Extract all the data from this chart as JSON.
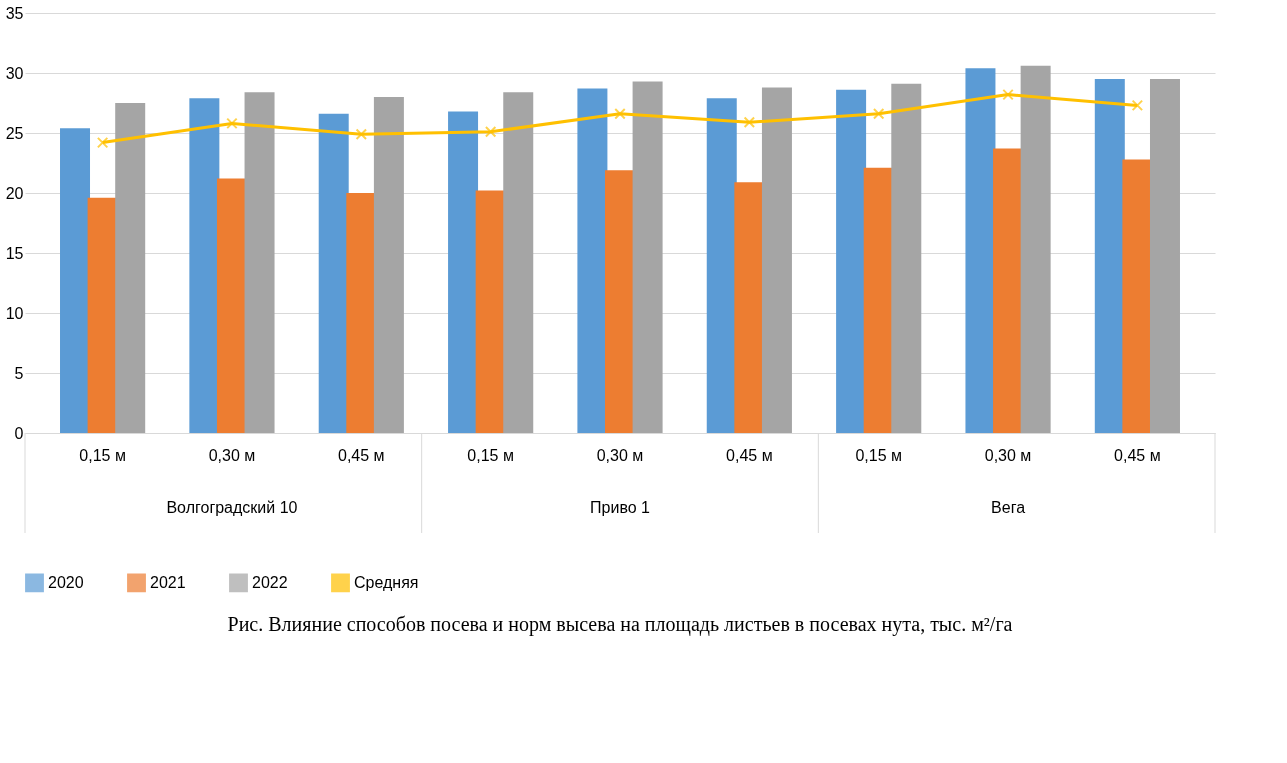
{
  "chart_data": {
    "type": "bar",
    "title": "Рис. Влияние способов посева и норм высева на площадь листьев в посевах нута, тыс. м²/га",
    "categories": [
      "0,15 м",
      "0,30 м",
      "0,45 м",
      "0,15 м",
      "0,30 м",
      "0,45 м",
      "0,15 м",
      "0,30 м",
      "0,45 м"
    ],
    "annotations": [
      "Волгоградский 10",
      "Приво 1",
      "Вега"
    ],
    "series": [
      {
        "name": "2020",
        "color": "#5b9bd5",
        "values": [
          25.4,
          27.9,
          26.6,
          26.8,
          28.7,
          27.9,
          28.6,
          30.4,
          29.5
        ]
      },
      {
        "name": "2021",
        "color": "#ed7d31",
        "values": [
          19.6,
          21.2,
          20.0,
          20.2,
          21.9,
          20.9,
          22.1,
          23.7,
          22.8
        ]
      },
      {
        "name": "2022",
        "color": "#a5a5a5",
        "values": [
          27.5,
          28.4,
          28.0,
          28.4,
          29.3,
          28.8,
          29.1,
          30.6,
          29.5
        ]
      },
      {
        "name": "Средняя",
        "color": "#ffc000",
        "type": "line",
        "marker": "cross",
        "values": [
          24.2,
          25.8,
          24.9,
          25.1,
          26.6,
          25.9,
          26.6,
          28.2,
          27.3
        ]
      }
    ],
    "ylim": [
      0,
      35
    ],
    "yticks": [
      0,
      5,
      10,
      15,
      20,
      25,
      30,
      35
    ],
    "grid": "y",
    "legend": "bottom"
  }
}
